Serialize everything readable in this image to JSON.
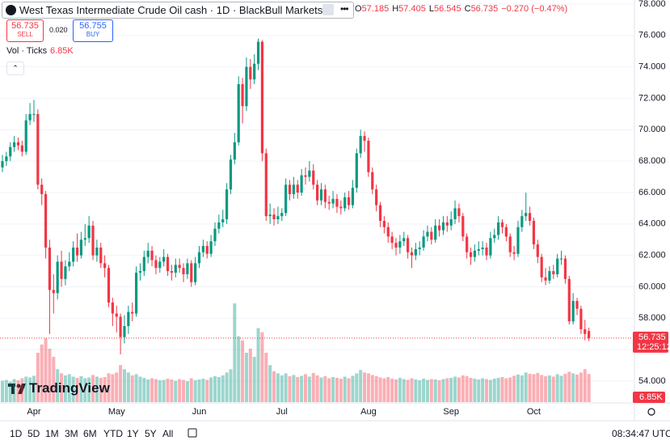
{
  "header": {
    "title": "West Texas Intermediate Crude Oil cash · 1D · BlackBull Markets",
    "ohlc_letters": [
      "O",
      "H",
      "L",
      "C"
    ],
    "change": "−0.270 (−0.47%)",
    "sell_label": "SELL",
    "buy_label": "BUY",
    "buy": 56.755,
    "spread": "0.020",
    "volume_title": "Vol · Ticks",
    "logo": "TradingView"
  },
  "footer": {
    "periods": [
      "1D",
      "5D",
      "1M",
      "3M",
      "6M",
      "YTD",
      "1Y",
      "5Y",
      "All"
    ],
    "clock": "08:34:47 UTC",
    "countdown": "12:25:12"
  },
  "chart_data": {
    "type": "candlestick",
    "title": "West Texas Intermediate Crude Oil cash",
    "up_color": "#089981",
    "down_color": "#f23645",
    "grid": true,
    "ylim": [
      54,
      78
    ],
    "yticks": [
      {
        "value": 54,
        "label": "54.000"
      },
      {
        "value": 56,
        "label": "56.000"
      },
      {
        "value": 58,
        "label": "58.000"
      },
      {
        "value": 60,
        "label": "60.000"
      },
      {
        "value": 62,
        "label": "62.000"
      },
      {
        "value": 64,
        "label": "64.000"
      },
      {
        "value": 66,
        "label": "66.000"
      },
      {
        "value": 68,
        "label": "68.000"
      },
      {
        "value": 70,
        "label": "70.000"
      },
      {
        "value": 72,
        "label": "72.000"
      },
      {
        "value": 74,
        "label": "74.000"
      },
      {
        "value": 76,
        "label": "76.000"
      },
      {
        "value": 78,
        "label": "78.000"
      }
    ],
    "categories": [
      null,
      null,
      null,
      null,
      null,
      null,
      null,
      null,
      "Apr",
      null,
      null,
      null,
      null,
      null,
      null,
      null,
      null,
      null,
      null,
      null,
      null,
      null,
      null,
      null,
      null,
      null,
      null,
      null,
      null,
      "May",
      null,
      null,
      null,
      null,
      null,
      null,
      null,
      null,
      null,
      null,
      null,
      null,
      null,
      null,
      null,
      null,
      null,
      null,
      null,
      null,
      "Jun",
      null,
      null,
      null,
      null,
      null,
      null,
      null,
      null,
      null,
      null,
      null,
      null,
      null,
      null,
      null,
      null,
      null,
      null,
      null,
      null,
      "Jul",
      null,
      null,
      null,
      null,
      null,
      null,
      null,
      null,
      null,
      null,
      null,
      null,
      null,
      null,
      null,
      null,
      null,
      null,
      null,
      null,
      null,
      "Aug",
      null,
      null,
      null,
      null,
      null,
      null,
      null,
      null,
      null,
      null,
      null,
      null,
      null,
      null,
      null,
      null,
      null,
      null,
      null,
      null,
      "Sep",
      null,
      null,
      null,
      null,
      null,
      null,
      null,
      null,
      null,
      null,
      null,
      null,
      null,
      null,
      null,
      null,
      null,
      null,
      null,
      null,
      "Oct",
      null,
      null,
      null,
      null,
      null,
      null,
      null,
      null,
      null,
      null,
      null,
      null,
      null,
      null
    ],
    "open": [
      67.6,
      68.0,
      68.3,
      68.9,
      69.2,
      69.0,
      68.6,
      70.6,
      71.0,
      71.0,
      66.5,
      65.9,
      62.5,
      59.8,
      59.6,
      61.6,
      60.5,
      61.3,
      61.6,
      62.5,
      62.0,
      63.0,
      63.1,
      63.9,
      62.0,
      62.5,
      61.5,
      61.2,
      59.0,
      58.3,
      58.1,
      56.8,
      57.5,
      58.4,
      58.3,
      60.9,
      61.0,
      61.9,
      62.3,
      61.7,
      61.2,
      61.6,
      61.9,
      61.0,
      60.9,
      61.4,
      61.2,
      60.8,
      61.5,
      60.3,
      61.5,
      62.2,
      62.6,
      62.1,
      62.9,
      63.7,
      64.1,
      64.3,
      66.2,
      68.1,
      69.2,
      72.9,
      71.5,
      74.0,
      73.2,
      74.2,
      75.6,
      68.5,
      64.5,
      64.6,
      64.3,
      64.5,
      64.7,
      66.5,
      65.9,
      66.5,
      66.0,
      67.1,
      67.0,
      67.4,
      66.5,
      65.5,
      66.2,
      65.4,
      65.3,
      65.6,
      65.1,
      65.0,
      65.7,
      65.2,
      66.3,
      68.5,
      69.6,
      69.3,
      67.3,
      66.2,
      65.2,
      64.2,
      63.8,
      63.2,
      62.8,
      62.5,
      62.9,
      63.1,
      62.2,
      62.0,
      62.4,
      62.5,
      63.2,
      63.5,
      63.0,
      63.9,
      63.6,
      64.1,
      63.9,
      64.3,
      65.0,
      64.5,
      63.2,
      62.2,
      61.9,
      62.3,
      62.4,
      62.5,
      62.0,
      63.1,
      63.3,
      64.1,
      63.8,
      63.2,
      62.2,
      62.1,
      63.8,
      64.5,
      64.7,
      64.2,
      62.7,
      61.9,
      60.6,
      60.4,
      61.0,
      60.8,
      61.8,
      61.8,
      60.5,
      57.8,
      59.1,
      58.6,
      57.3,
      57.185
    ],
    "high": [
      68.4,
      68.6,
      69.2,
      69.6,
      69.5,
      69.3,
      71.0,
      71.7,
      71.9,
      71.3,
      66.9,
      66.1,
      63.0,
      60.8,
      62.0,
      62.3,
      61.7,
      62.2,
      62.9,
      63.4,
      63.5,
      64.0,
      64.5,
      64.2,
      63.0,
      62.8,
      62.0,
      61.4,
      59.3,
      58.8,
      58.3,
      58.2,
      58.8,
      59.0,
      61.3,
      61.5,
      62.3,
      62.8,
      62.6,
      62.0,
      61.9,
      62.4,
      62.1,
      61.4,
      61.8,
      61.8,
      61.5,
      61.8,
      61.7,
      61.9,
      62.6,
      63.0,
      62.9,
      63.3,
      64.1,
      64.6,
      64.9,
      66.6,
      68.4,
      69.8,
      73.4,
      73.3,
      74.6,
      74.5,
      74.8,
      75.8,
      75.7,
      68.8,
      65.3,
      65.0,
      65.1,
      65.0,
      66.9,
      66.8,
      67.0,
      66.8,
      67.5,
      67.6,
      68.0,
      67.8,
      66.8,
      66.6,
      66.5,
      65.8,
      66.1,
      65.9,
      65.5,
      66.0,
      66.1,
      66.8,
      68.8,
      70.0,
      69.9,
      69.5,
      67.6,
      66.5,
      65.4,
      64.5,
      64.1,
      63.5,
      63.1,
      63.3,
      63.5,
      63.3,
      62.5,
      62.8,
      62.9,
      63.6,
      63.9,
      63.8,
      64.3,
      64.3,
      64.5,
      64.5,
      64.8,
      65.5,
      65.3,
      64.7,
      63.4,
      62.5,
      62.7,
      62.9,
      62.9,
      62.8,
      63.5,
      63.7,
      64.5,
      64.3,
      64.0,
      63.4,
      62.6,
      64.2,
      64.9,
      66.0,
      65.1,
      64.4,
      63.0,
      62.1,
      61.2,
      61.3,
      61.4,
      62.1,
      62.3,
      62.0,
      60.7,
      59.6,
      59.3,
      58.8,
      57.9,
      57.405
    ],
    "low": [
      67.3,
      67.7,
      68.0,
      68.6,
      68.7,
      68.3,
      68.4,
      70.3,
      70.5,
      66.2,
      65.2,
      61.8,
      57.0,
      58.3,
      59.2,
      60.0,
      60.1,
      61.0,
      61.3,
      61.6,
      61.8,
      62.6,
      62.8,
      61.7,
      61.6,
      61.2,
      60.6,
      58.7,
      57.5,
      57.1,
      55.7,
      56.4,
      57.0,
      57.8,
      58.1,
      60.4,
      60.7,
      61.5,
      61.3,
      60.8,
      60.9,
      61.3,
      60.7,
      60.4,
      60.6,
      60.9,
      60.3,
      60.5,
      60.0,
      60.1,
      61.2,
      61.9,
      61.8,
      61.9,
      62.6,
      63.4,
      63.8,
      64.0,
      65.9,
      67.8,
      69.0,
      70.4,
      71.2,
      72.6,
      72.9,
      73.8,
      68.0,
      64.2,
      64.0,
      63.9,
      64.0,
      64.2,
      64.5,
      65.5,
      65.6,
      65.6,
      65.8,
      66.5,
      66.7,
      66.2,
      65.2,
      65.2,
      65.0,
      64.9,
      65.0,
      64.7,
      64.6,
      64.8,
      64.9,
      65.0,
      66.0,
      68.2,
      68.6,
      67.0,
      65.9,
      64.8,
      63.8,
      63.4,
      62.8,
      62.4,
      62.0,
      62.1,
      62.6,
      61.8,
      61.2,
      61.7,
      62.0,
      62.3,
      62.9,
      62.7,
      62.8,
      63.2,
      63.3,
      63.5,
      63.6,
      64.0,
      64.1,
      62.9,
      61.8,
      61.4,
      61.6,
      62.0,
      62.0,
      61.7,
      61.8,
      62.8,
      63.0,
      63.4,
      62.9,
      61.9,
      61.7,
      61.9,
      63.5,
      64.2,
      63.9,
      62.4,
      61.5,
      60.3,
      60.1,
      60.2,
      60.5,
      60.6,
      61.4,
      60.2,
      57.6,
      57.6,
      58.2,
      57.0,
      56.6,
      56.545
    ],
    "close": [
      68.0,
      68.3,
      68.9,
      69.2,
      69.0,
      68.6,
      70.6,
      71.0,
      71.0,
      66.5,
      65.9,
      62.5,
      59.8,
      59.6,
      61.6,
      60.5,
      61.3,
      61.6,
      62.5,
      62.0,
      63.0,
      63.1,
      63.9,
      62.0,
      62.5,
      61.5,
      61.2,
      59.0,
      58.3,
      58.1,
      56.8,
      57.5,
      58.4,
      58.3,
      60.9,
      61.0,
      61.9,
      62.3,
      61.7,
      61.2,
      61.6,
      61.9,
      61.0,
      60.9,
      61.4,
      61.2,
      60.8,
      61.5,
      60.3,
      61.5,
      62.2,
      62.6,
      62.1,
      62.9,
      63.7,
      64.1,
      64.3,
      66.2,
      68.1,
      69.2,
      72.9,
      71.5,
      74.0,
      73.2,
      74.2,
      75.6,
      68.5,
      64.5,
      64.6,
      64.3,
      64.5,
      64.7,
      66.5,
      65.9,
      66.5,
      66.0,
      67.1,
      67.0,
      67.4,
      66.5,
      65.5,
      66.2,
      65.4,
      65.3,
      65.6,
      65.1,
      65.0,
      65.7,
      65.2,
      66.3,
      68.5,
      69.6,
      69.3,
      67.3,
      66.2,
      65.2,
      64.2,
      63.8,
      63.2,
      62.8,
      62.5,
      62.9,
      63.1,
      62.2,
      62.0,
      62.4,
      62.5,
      63.2,
      63.5,
      63.0,
      63.9,
      63.6,
      64.1,
      63.9,
      64.3,
      65.0,
      64.5,
      63.2,
      62.2,
      61.9,
      62.3,
      62.4,
      62.5,
      62.0,
      63.1,
      63.3,
      64.1,
      63.8,
      63.2,
      62.2,
      62.1,
      63.8,
      64.5,
      64.7,
      64.2,
      62.7,
      61.9,
      60.6,
      60.4,
      61.0,
      60.8,
      61.8,
      61.8,
      60.5,
      57.8,
      59.1,
      58.6,
      57.3,
      57.0,
      56.735
    ],
    "volume": [
      5200,
      5400,
      5000,
      5600,
      5300,
      5800,
      6200,
      6000,
      6400,
      12000,
      14000,
      15500,
      13000,
      11000,
      8000,
      7000,
      6500,
      6800,
      6200,
      5900,
      6300,
      5800,
      6000,
      6600,
      6200,
      5900,
      6100,
      7000,
      6800,
      7200,
      9000,
      8000,
      7200,
      6500,
      6800,
      6200,
      5900,
      5500,
      5800,
      5600,
      5300,
      5400,
      5700,
      5500,
      5200,
      5600,
      5400,
      5100,
      5800,
      5300,
      5500,
      5700,
      5400,
      6000,
      6300,
      6100,
      6500,
      7200,
      8000,
      24000,
      16000,
      15000,
      12000,
      13000,
      11000,
      18000,
      17000,
      12000,
      9000,
      7500,
      7000,
      6500,
      7000,
      6300,
      6600,
      6100,
      6400,
      6800,
      6200,
      7100,
      6500,
      6000,
      6300,
      5800,
      6100,
      5900,
      5700,
      6200,
      5800,
      6400,
      7000,
      7800,
      7200,
      7000,
      6600,
      6300,
      6000,
      5800,
      6100,
      5700,
      5500,
      5900,
      5600,
      5400,
      5800,
      5500,
      5300,
      5700,
      5400,
      5600,
      5500,
      5300,
      5600,
      5800,
      5900,
      6200,
      6000,
      6500,
      6300,
      5900,
      5700,
      5500,
      5800,
      5600,
      5400,
      5700,
      5900,
      6100,
      5800,
      6000,
      6400,
      6700,
      6500,
      7200,
      6900,
      6800,
      7100,
      6600,
      6300,
      6500,
      6200,
      6800,
      6400,
      6900,
      7400,
      7000,
      6700,
      7200,
      8000,
      6850
    ],
    "volume_label": "6.85K"
  }
}
